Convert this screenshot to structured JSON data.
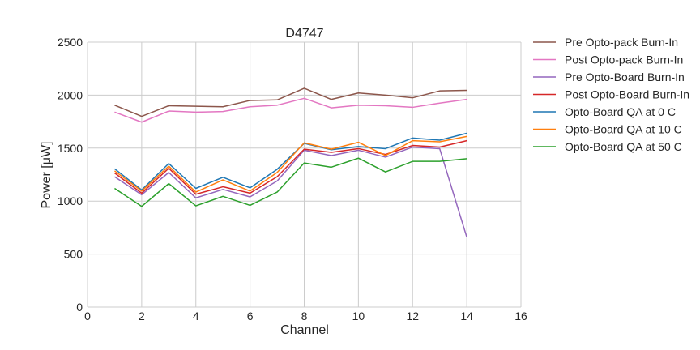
{
  "chart_data": {
    "type": "line",
    "title": "D4747",
    "xlabel": "Channel",
    "ylabel": "Power [μW]",
    "xlim": [
      0,
      16
    ],
    "ylim": [
      0,
      2500
    ],
    "xticks": [
      0,
      2,
      4,
      6,
      8,
      10,
      12,
      14,
      16
    ],
    "yticks": [
      0,
      500,
      1000,
      1500,
      2000,
      2500
    ],
    "grid": true,
    "legend_position": "right",
    "x": [
      1,
      2,
      3,
      4,
      5,
      6,
      7,
      8,
      9,
      10,
      11,
      12,
      13,
      14
    ],
    "series": [
      {
        "name": "Pre Opto-pack Burn-In",
        "color": "#8c564b",
        "values": [
          1905,
          1800,
          1900,
          1895,
          1890,
          1950,
          1955,
          2065,
          1960,
          2020,
          2000,
          1975,
          2040,
          2045
        ]
      },
      {
        "name": "Post Opto-pack Burn-In",
        "color": "#e377c2",
        "values": [
          1840,
          1745,
          1850,
          1840,
          1845,
          1890,
          1905,
          1970,
          1880,
          1905,
          1900,
          1885,
          1925,
          1960
        ]
      },
      {
        "name": "Pre Opto-Board Burn-In",
        "color": "#9467bd",
        "values": [
          1230,
          1060,
          1270,
          1030,
          1110,
          1040,
          1190,
          1480,
          1430,
          1480,
          1415,
          1510,
          1495,
          660
        ]
      },
      {
        "name": "Post Opto-Board Burn-In",
        "color": "#d62728",
        "values": [
          1265,
          1075,
          1310,
          1065,
          1135,
          1075,
          1230,
          1490,
          1460,
          1495,
          1440,
          1525,
          1510,
          1570
        ]
      },
      {
        "name": "Opto-Board QA at 0 C",
        "color": "#1f77b4",
        "values": [
          1305,
          1105,
          1355,
          1120,
          1225,
          1125,
          1300,
          1545,
          1485,
          1515,
          1495,
          1595,
          1575,
          1640
        ]
      },
      {
        "name": "Opto-Board QA at 10 C",
        "color": "#ff7f0e",
        "values": [
          1285,
          1095,
          1330,
          1085,
          1200,
          1095,
          1270,
          1550,
          1490,
          1555,
          1430,
          1570,
          1560,
          1610
        ]
      },
      {
        "name": "Opto-Board QA at 50 C",
        "color": "#2ca02c",
        "values": [
          1120,
          950,
          1165,
          955,
          1045,
          960,
          1085,
          1360,
          1320,
          1405,
          1275,
          1375,
          1375,
          1400
        ]
      }
    ]
  }
}
